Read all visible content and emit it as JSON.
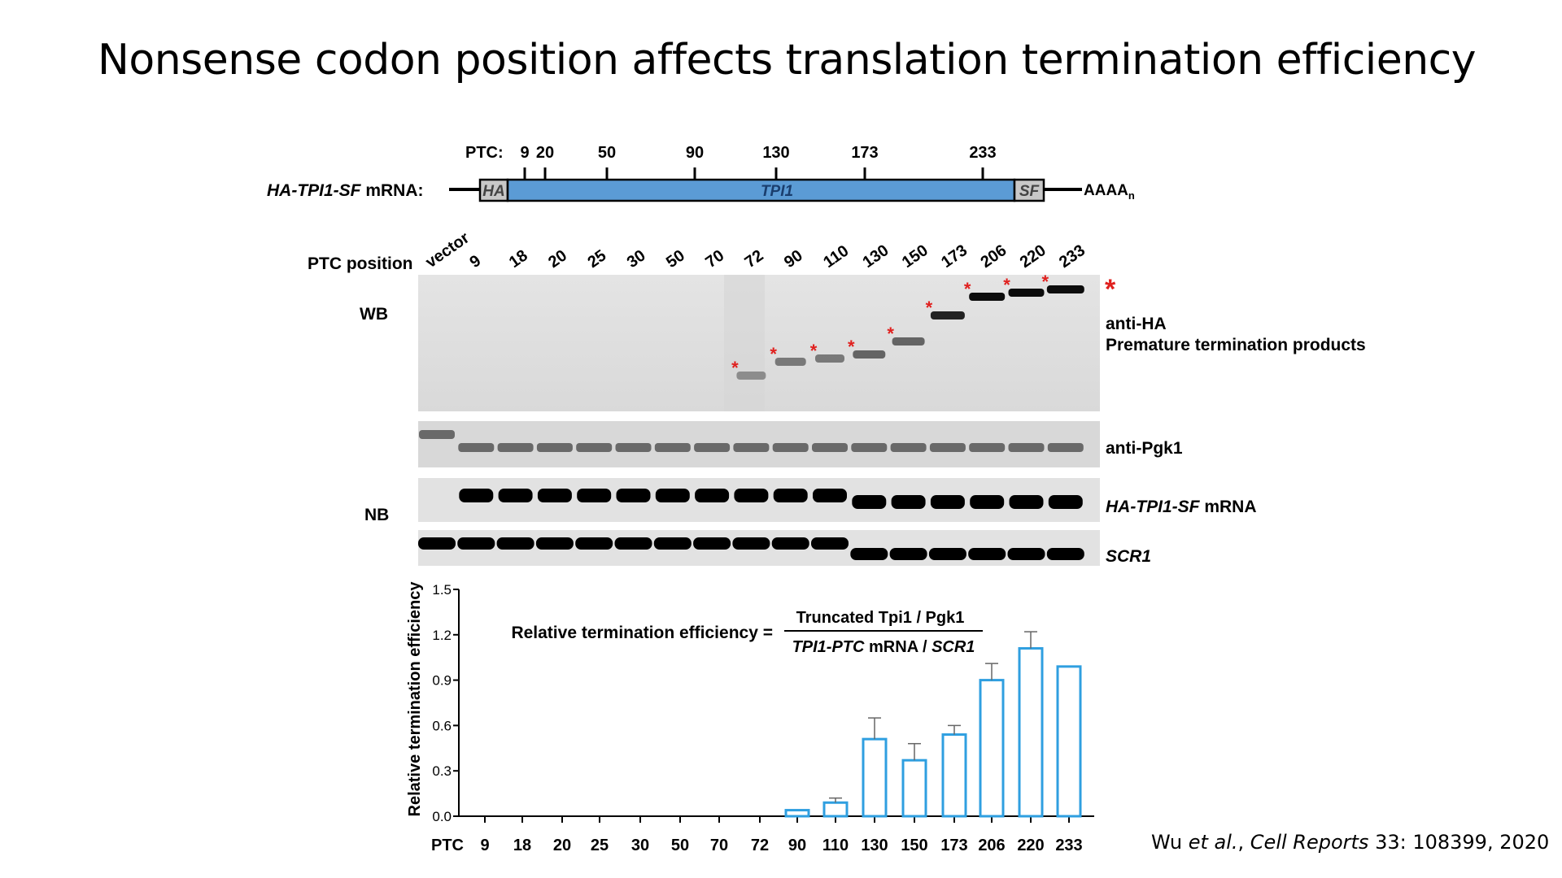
{
  "title": "Nonsense codon position affects translation termination efficiency",
  "construct": {
    "prefix_italic": "HA-TPI1-SF",
    "prefix_rest": " mRNA:",
    "ptc_label": "PTC:",
    "ptc_marks": [
      "9",
      "20",
      "50",
      "90",
      "130",
      "173",
      "233"
    ],
    "segments": {
      "ha": "HA",
      "tpi1": "TPI1",
      "sf": "SF"
    },
    "polyA": "AAAA",
    "polyA_sub": "n",
    "colors": {
      "tpi1": "#5b9bd5",
      "tag": "#c8c8c8"
    }
  },
  "gel": {
    "ptc_position_label": "PTC position",
    "lanes": [
      "vector",
      "9",
      "18",
      "20",
      "25",
      "30",
      "50",
      "70",
      "72",
      "90",
      "110",
      "130",
      "150",
      "173",
      "206",
      "220",
      "233"
    ],
    "wb_label": "WB",
    "nb_label": "NB",
    "anti_ha_label": "anti-HA",
    "premature_label": "Premature termination products",
    "anti_pgk1_label": "anti-Pgk1",
    "mrna_label_italic": "HA-TPI1-SF",
    "mrna_label_rest": " mRNA",
    "scr1_label": "SCR1",
    "asterisk": "*",
    "asterisk_color": "#e0201e"
  },
  "formula": {
    "lhs": "Relative termination efficiency =",
    "numerator": "Truncated Tpi1 / Pgk1",
    "denominator_italic1": "TPI1-PTC",
    "denominator_mid": " mRNA / ",
    "denominator_italic2": "SCR1"
  },
  "chart_data": {
    "type": "bar",
    "categories": [
      "9",
      "18",
      "20",
      "25",
      "30",
      "50",
      "70",
      "72",
      "90",
      "110",
      "130",
      "150",
      "173",
      "206",
      "220",
      "233"
    ],
    "values": [
      0,
      0,
      0,
      0,
      0,
      0,
      0,
      0,
      0.04,
      0.09,
      0.51,
      0.37,
      0.54,
      0.9,
      1.11,
      0.99
    ],
    "errors": [
      0,
      0,
      0,
      0,
      0,
      0,
      0,
      0,
      0,
      0.03,
      0.14,
      0.11,
      0.06,
      0.11,
      0.11,
      0
    ],
    "xlabel": "PTC",
    "ylabel": "Relative termination efficiency",
    "ylim": [
      0,
      1.5
    ],
    "yticks": [
      "0.0",
      "0.3",
      "0.6",
      "0.9",
      "1.2",
      "1.5"
    ],
    "bar_color": "#2f9fe0"
  },
  "citation": {
    "authors": "Wu ",
    "etal": "et al.",
    "journal": "Cell Reports",
    "rest": " 33: 108399, 2020"
  }
}
